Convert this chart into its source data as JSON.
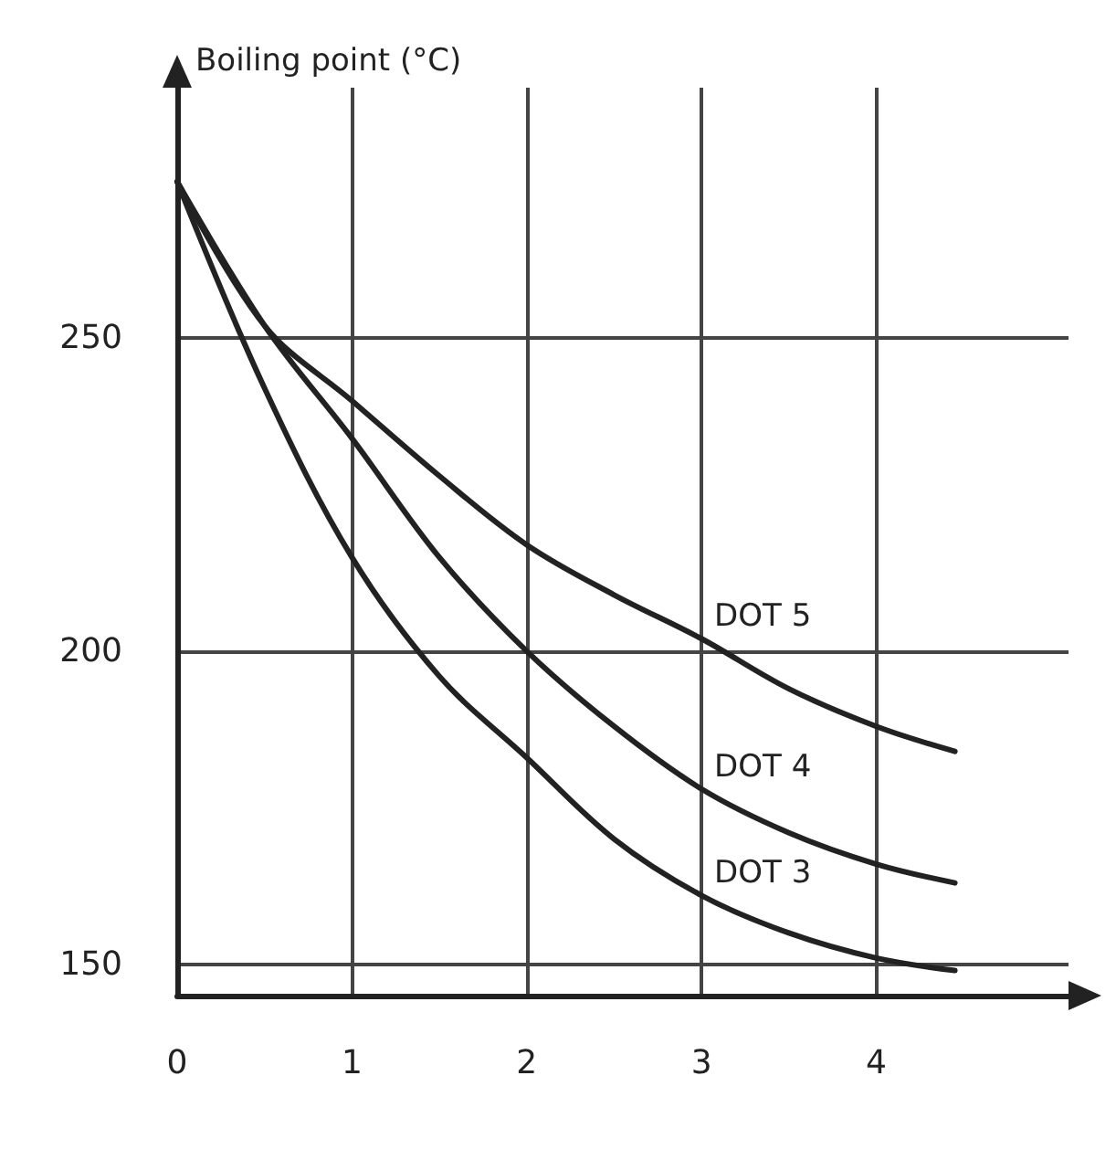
{
  "chart_data": {
    "type": "line",
    "ylabel": "Boiling point (°C)",
    "x": [
      0,
      0.5,
      1,
      1.5,
      2,
      2.5,
      3,
      3.5,
      4,
      4.45
    ],
    "series": [
      {
        "name": "DOT 5",
        "color": "#222222",
        "values": [
          275,
          252,
          240,
          228,
          217,
          209,
          202,
          194,
          188,
          184
        ]
      },
      {
        "name": "DOT 4",
        "color": "#222222",
        "values": [
          275,
          252,
          234,
          215,
          200,
          188,
          178,
          171,
          166,
          163
        ]
      },
      {
        "name": "DOT 3",
        "color": "#222222",
        "values": [
          275,
          242,
          215,
          196,
          183,
          170,
          161,
          155,
          151,
          149
        ]
      }
    ],
    "xlim": [
      0,
      5.1
    ],
    "xticks": [
      0,
      1,
      2,
      3,
      4
    ],
    "ylim": [
      145,
      290
    ],
    "yticks": [
      150,
      200,
      250
    ],
    "grid": true,
    "marker": "none",
    "line_style": "solid"
  }
}
